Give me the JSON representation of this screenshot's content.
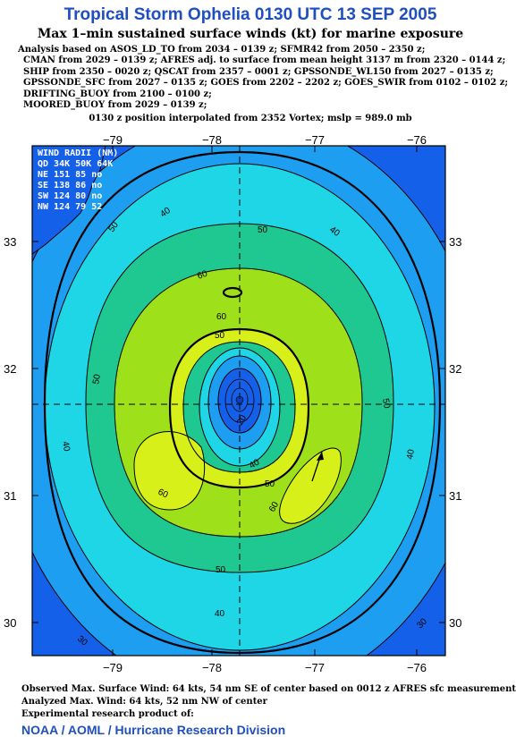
{
  "title": "Tropical Storm Ophelia 0130 UTC 13 SEP 2005",
  "subtitle": "Max 1–min sustained surface winds (kt) for marine exposure",
  "analysis_lines": [
    "Analysis based on  ASOS_LD_TO from 2034 – 0139 z;  SFMR42 from 2050 – 2350 z;",
    "CMAN from 2029 – 0139 z;  AFRES adj. to surface from mean height 3137 m from 2320 – 0144 z;",
    "SHIP from 2350 – 0020 z;  QSCAT from 2357 – 0001 z;  GPSSONDE_WL150 from 2027 – 0135 z;",
    "GPSSONDE_SFC from 2027 – 0135 z;  GOES from 2202 – 2202 z;  GOES_SWIR from 0102 – 0102 z;",
    "DRIFTING_BUOY from 2100 – 0100 z;",
    "MOORED_BUOY from 2029 – 0139 z;"
  ],
  "position_line": "0130 z position interpolated from 2352 Vortex; mslp = 989.0 mb",
  "map": {
    "lon_labels": [
      "−79",
      "−78",
      "−77",
      "−76"
    ],
    "lat_labels": [
      "33",
      "32",
      "31",
      "30"
    ],
    "center_lon": -77.75,
    "center_lat": 31.75,
    "contour_labels": [
      "40",
      "50",
      "60",
      "60",
      "50",
      "40",
      "50",
      "40",
      "50",
      "60",
      "20",
      "40",
      "50",
      "60",
      "50",
      "40",
      "30",
      "30",
      "50",
      "40"
    ]
  },
  "wind_radii": {
    "title": "WIND RADII (NM)",
    "header": "QD 34K 50K 64K",
    "rows": [
      "NE 151  85  no",
      "SE 138  86  no",
      "SW 124  80  no",
      "NW 124  79  52"
    ]
  },
  "footer": {
    "observed": "Observed Max. Surface Wind: 64 kts, 54 nm SE of center based on 0012 z AFRES sfc measurement",
    "analyzed": "Analyzed Max. Wind: 64 kts, 52 nm NW of center",
    "product": "Experimental research product of:",
    "org": "NOAA / AOML / Hurricane Research Division"
  },
  "colors": {
    "title": "#1f4fbf",
    "band_20": "#1560e8",
    "band_30": "#1e9ef0",
    "band_40": "#1ed6e6",
    "band_50": "#1fc890",
    "band_60": "#9ee01a",
    "band_64": "#d8f01a"
  }
}
